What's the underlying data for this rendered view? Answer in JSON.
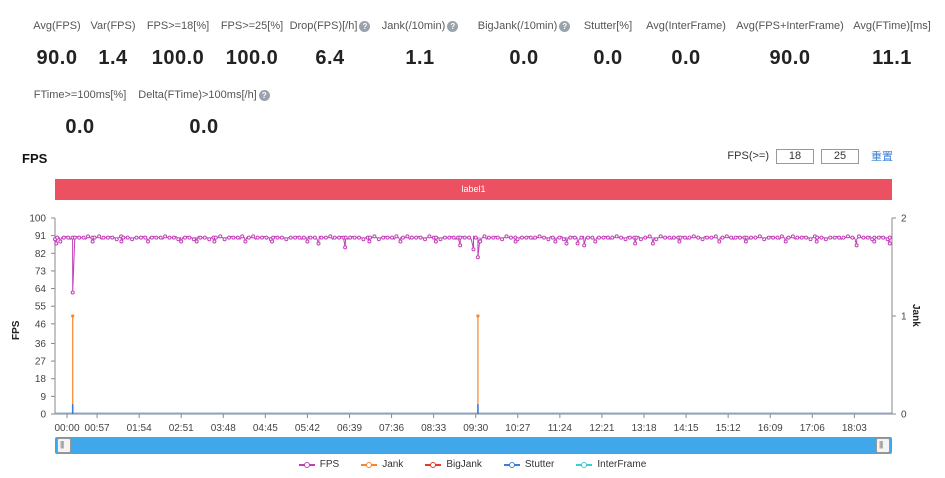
{
  "metrics_row1": [
    {
      "label": "Avg(FPS)",
      "value": "90.0",
      "help": false
    },
    {
      "label": "Var(FPS)",
      "value": "1.4",
      "help": false
    },
    {
      "label": "FPS>=18[%]",
      "value": "100.0",
      "help": false
    },
    {
      "label": "FPS>=25[%]",
      "value": "100.0",
      "help": false
    },
    {
      "label": "Drop(FPS)[/h]",
      "value": "6.4",
      "help": true
    },
    {
      "label": "Jank(/10min)",
      "value": "1.1",
      "help": true
    },
    {
      "label": "BigJank(/10min)",
      "value": "0.0",
      "help": true
    },
    {
      "label": "Stutter[%]",
      "value": "0.0",
      "help": false
    },
    {
      "label": "Avg(InterFrame)",
      "value": "0.0",
      "help": false
    },
    {
      "label": "Avg(FPS+InterFrame)",
      "value": "90.0",
      "help": false
    },
    {
      "label": "Avg(FTime)[ms]",
      "value": "11.1",
      "help": false
    }
  ],
  "metrics_row2": [
    {
      "label": "FTime>=100ms[%]",
      "value": "0.0",
      "help": false
    },
    {
      "label": "Delta(FTime)>100ms[/h]",
      "value": "0.0",
      "help": true
    }
  ],
  "section_title": "FPS",
  "fps_filter": {
    "label": "FPS(>=)",
    "value1": "18",
    "value2": "25",
    "reset": "重置"
  },
  "label_bar": "label1",
  "help_glyph": "?",
  "chart_data": {
    "type": "line",
    "title": "FPS",
    "ylabel": "FPS",
    "y2label": "Jank",
    "ylim": [
      0,
      100
    ],
    "y2lim": [
      0,
      2
    ],
    "yticks": [
      0,
      9,
      18,
      27,
      36,
      46,
      55,
      64,
      73,
      82,
      91,
      100
    ],
    "y2ticks": [
      0,
      1,
      2
    ],
    "xticks": [
      "00:00",
      "00:57",
      "01:54",
      "02:51",
      "03:48",
      "04:45",
      "05:42",
      "06:39",
      "07:36",
      "08:33",
      "09:30",
      "10:27",
      "11:24",
      "12:21",
      "13:18",
      "14:15",
      "15:12",
      "16:09",
      "17:06",
      "18:03"
    ],
    "xlim_minutes": [
      0,
      18.9
    ],
    "fps_baseline": 90,
    "fps_dips": [
      {
        "t": 0.03,
        "v": 87
      },
      {
        "t": 0.12,
        "v": 88
      },
      {
        "t": 0.4,
        "v": 62
      },
      {
        "t": 0.85,
        "v": 88
      },
      {
        "t": 1.5,
        "v": 88
      },
      {
        "t": 2.1,
        "v": 88
      },
      {
        "t": 2.85,
        "v": 88
      },
      {
        "t": 3.2,
        "v": 88
      },
      {
        "t": 3.6,
        "v": 88
      },
      {
        "t": 4.3,
        "v": 88
      },
      {
        "t": 4.9,
        "v": 88
      },
      {
        "t": 5.7,
        "v": 88
      },
      {
        "t": 5.95,
        "v": 87
      },
      {
        "t": 6.55,
        "v": 85
      },
      {
        "t": 7.1,
        "v": 88
      },
      {
        "t": 7.8,
        "v": 88
      },
      {
        "t": 8.6,
        "v": 88
      },
      {
        "t": 9.15,
        "v": 86
      },
      {
        "t": 9.45,
        "v": 84
      },
      {
        "t": 9.55,
        "v": 80
      },
      {
        "t": 9.6,
        "v": 88
      },
      {
        "t": 10.4,
        "v": 88
      },
      {
        "t": 11.3,
        "v": 88
      },
      {
        "t": 11.55,
        "v": 87
      },
      {
        "t": 11.8,
        "v": 87
      },
      {
        "t": 11.95,
        "v": 86
      },
      {
        "t": 12.2,
        "v": 88
      },
      {
        "t": 13.1,
        "v": 87
      },
      {
        "t": 13.5,
        "v": 87
      },
      {
        "t": 14.1,
        "v": 88
      },
      {
        "t": 15.0,
        "v": 88
      },
      {
        "t": 15.6,
        "v": 88
      },
      {
        "t": 16.5,
        "v": 88
      },
      {
        "t": 17.2,
        "v": 88
      },
      {
        "t": 18.1,
        "v": 86
      },
      {
        "t": 18.5,
        "v": 88
      },
      {
        "t": 18.85,
        "v": 87
      }
    ],
    "jank_events": [
      {
        "t": 0.4,
        "v": 1
      },
      {
        "t": 9.55,
        "v": 1
      }
    ],
    "stutter_events": [
      {
        "t": 0.4,
        "v": 0.1
      },
      {
        "t": 9.55,
        "v": 0.1
      }
    ],
    "series": [
      {
        "name": "FPS",
        "color": "#c241b9"
      },
      {
        "name": "Jank",
        "color": "#f5862e"
      },
      {
        "name": "BigJank",
        "color": "#e23b2e"
      },
      {
        "name": "Stutter",
        "color": "#3a7fd5"
      },
      {
        "name": "InterFrame",
        "color": "#3ecbd6"
      }
    ]
  }
}
